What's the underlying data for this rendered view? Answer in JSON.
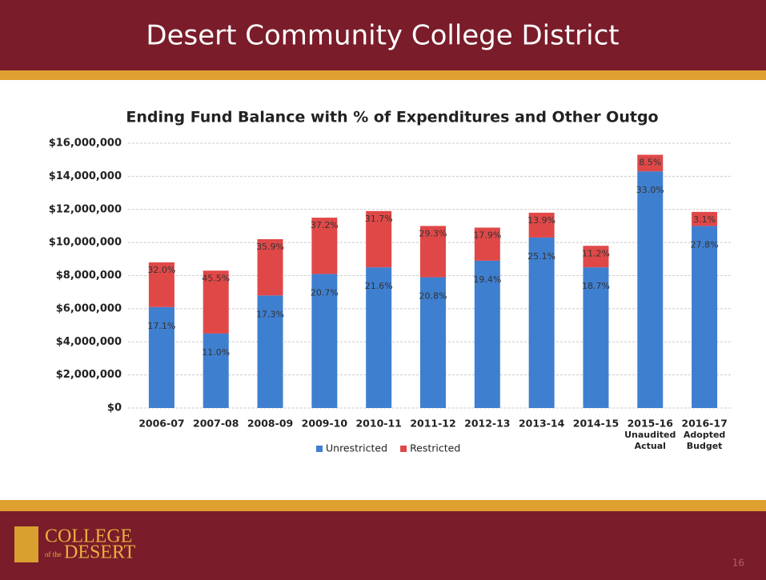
{
  "slide": {
    "title": "Desert Community College District",
    "logo": [
      "COLLEGE",
      "of the",
      "DESERT"
    ],
    "page": "16"
  },
  "chart_data": {
    "type": "bar",
    "stacked": true,
    "title": "Ending Fund Balance with % of Expenditures and Other Outgo",
    "categories": [
      [
        "2006-07"
      ],
      [
        "2007-08"
      ],
      [
        "2008-09"
      ],
      [
        "2009-10"
      ],
      [
        "2010-11"
      ],
      [
        "2011-12"
      ],
      [
        "2012-13"
      ],
      [
        "2013-14"
      ],
      [
        "2014-15"
      ],
      [
        "2015-16",
        "Unaudited",
        "Actual"
      ],
      [
        "2016-17",
        "Adopted",
        "Budget"
      ]
    ],
    "series": [
      {
        "name": "Unrestricted",
        "color": "#3f7fd0",
        "values": [
          6100000,
          4500000,
          6800000,
          8100000,
          8500000,
          7900000,
          8900000,
          10300000,
          8500000,
          14300000,
          11000000
        ],
        "labels": [
          "17.1%",
          "11.0%",
          "17.3%",
          "20.7%",
          "21.6%",
          "20.8%",
          "19.4%",
          "25.1%",
          "18.7%",
          "33.0%",
          "27.8%"
        ]
      },
      {
        "name": "Restricted",
        "color": "#e04848",
        "values": [
          2700000,
          3800000,
          3400000,
          3400000,
          3400000,
          3100000,
          2000000,
          1500000,
          1300000,
          1000000,
          850000
        ],
        "labels": [
          "32.0%",
          "45.5%",
          "35.9%",
          "37.2%",
          "31.7%",
          "29.3%",
          "17.9%",
          "13.9%",
          "11.2%",
          "8.5%",
          "3.1%"
        ]
      }
    ],
    "ylim": [
      0,
      16000000
    ],
    "yticks": [
      {
        "value": 0,
        "label": "$0"
      },
      {
        "value": 2000000,
        "label": "$2,000,000"
      },
      {
        "value": 4000000,
        "label": "$4,000,000"
      },
      {
        "value": 6000000,
        "label": "$6,000,000"
      },
      {
        "value": 8000000,
        "label": "$8,000,000"
      },
      {
        "value": 10000000,
        "label": "$10,000,000"
      },
      {
        "value": 12000000,
        "label": "$12,000,000"
      },
      {
        "value": 14000000,
        "label": "$14,000,000"
      },
      {
        "value": 16000000,
        "label": "$16,000,000"
      }
    ],
    "grid": true,
    "legend": "bottom"
  }
}
